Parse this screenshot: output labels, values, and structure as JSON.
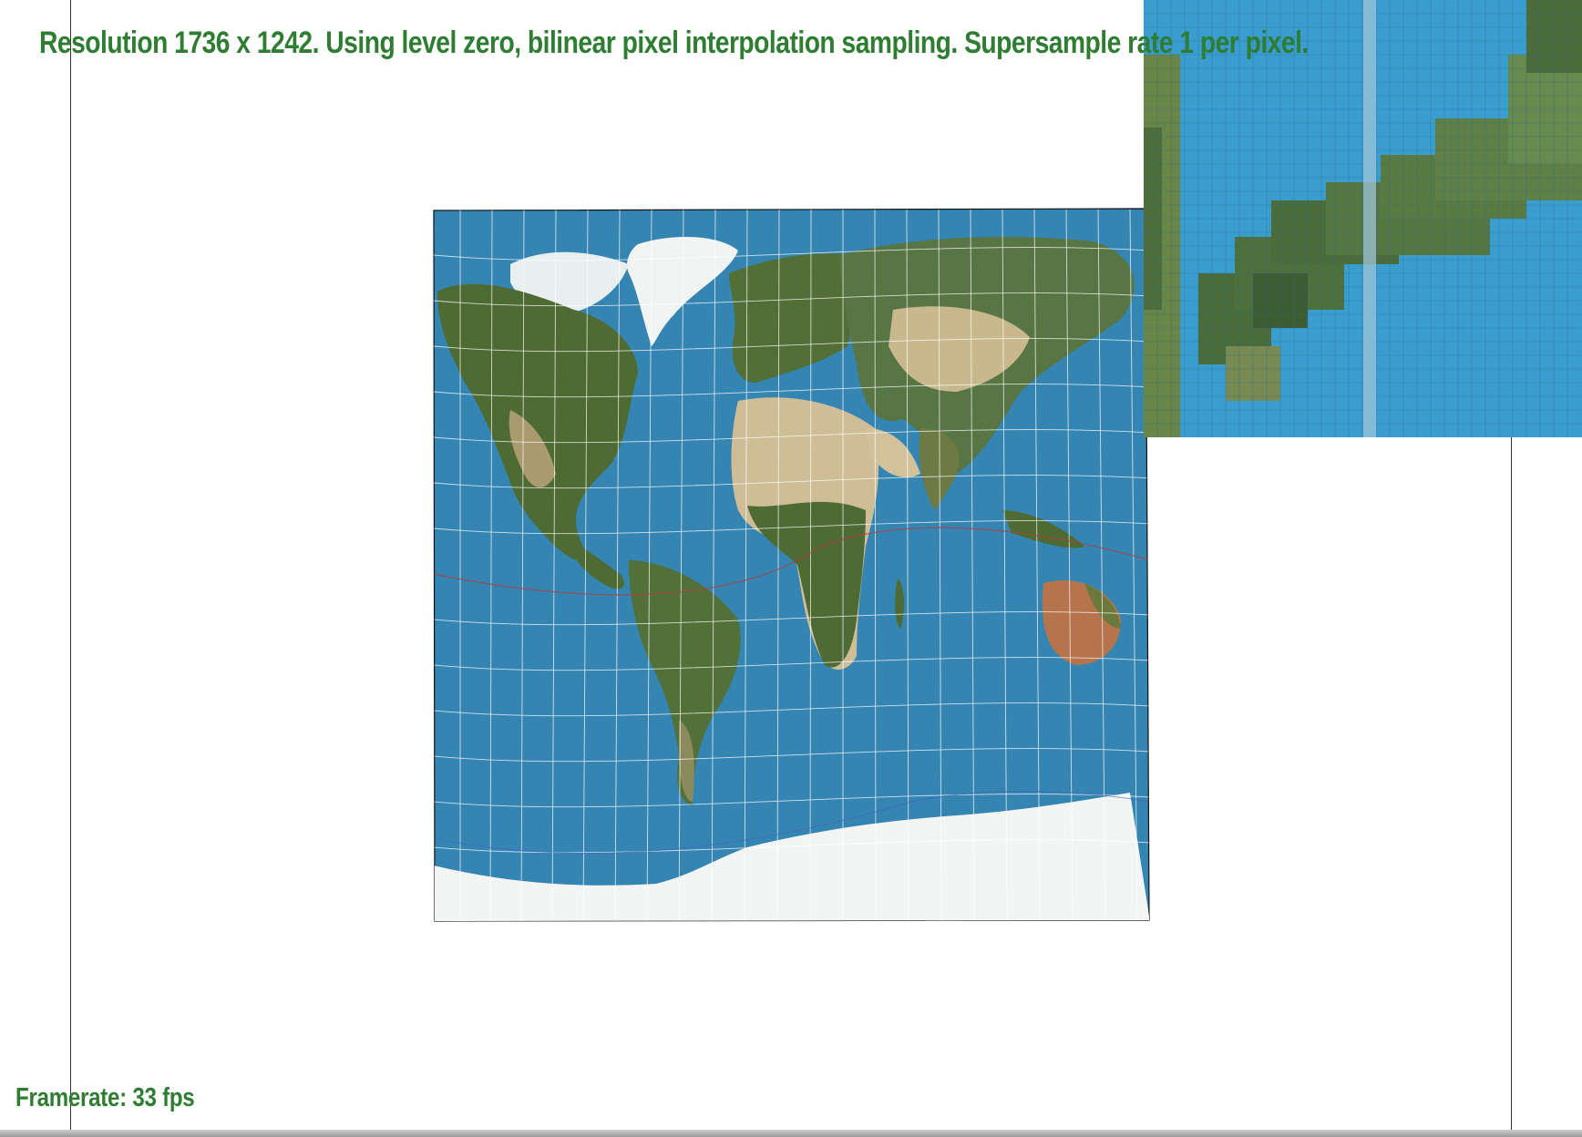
{
  "status": {
    "resolution_line": "Resolution 1736 x 1242. Using level zero, bilinear pixel interpolation sampling. Supersample rate 1 per pixel.",
    "framerate_line": "Framerate: 33 fps"
  },
  "scene": {
    "texture": "world-satellite-map",
    "sampling": "bilinear",
    "mip_level": "zero",
    "supersample_rate": 1,
    "framerate_fps": 33
  },
  "colors": {
    "status_text": "#2e7d32",
    "ocean": "#3585b2",
    "ocean_light": "#3a9dd0",
    "land_green": "#4f6b34",
    "land_desert": "#cfbd98",
    "land_red": "#b5744b",
    "ice": "#f3f5f5",
    "graticule": "#ffffff",
    "tropic_line": "#b04040"
  }
}
